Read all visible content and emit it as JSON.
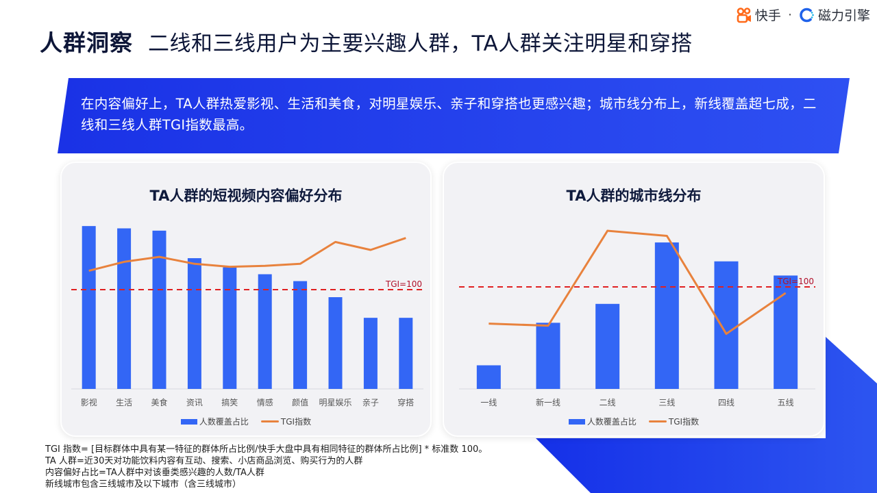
{
  "brand": {
    "kuaishou_label": "快手",
    "separator": "·",
    "engine_label": "磁力引擎",
    "kuaishou_icon": "kuaishou-logo-icon",
    "engine_icon": "cili-engine-logo-icon",
    "colors": {
      "kuaishou": "#ff6a1a",
      "engine": "#27b6e8"
    }
  },
  "header": {
    "title": "人群洞察",
    "subtitle": "二线和三线用户为主要兴趣人群，TA人群关注明星和穿搭"
  },
  "summary": {
    "text": "在内容偏好上，TA人群热爱影视、生活和美食，对明星娱乐、亲子和穿搭也更感兴趣；城市线分布上，新线覆盖超七成，二线和三线人群TGI指数最高。"
  },
  "colors": {
    "accent_blue": "#1f3ef0",
    "bar_blue": "#3366f5",
    "tgi_line": "#e8823d",
    "tgi_ref": "#e02020",
    "tgi_ref_label": "#b0102a"
  },
  "legend": {
    "bar_label": "人数覆盖占比",
    "line_label": "TGI指数"
  },
  "chart_data": [
    {
      "type": "bar+line",
      "title": "TA人群的短视频内容偏好分布",
      "categories": [
        "影视",
        "生活",
        "美食",
        "资讯",
        "搞笑",
        "情感",
        "颜值",
        "明星娱乐",
        "亲子",
        "穿搭"
      ],
      "series": [
        {
          "name": "人数覆盖占比",
          "type": "bar",
          "axis": "left",
          "values": [
            71,
            70,
            69,
            57,
            53,
            50,
            47,
            40,
            31,
            31
          ]
        },
        {
          "name": "TGI指数",
          "type": "line",
          "axis": "right",
          "values": [
            119,
            128,
            133,
            126,
            123,
            124,
            126,
            148,
            140,
            152
          ]
        }
      ],
      "reference_line": {
        "label": "TGI=100",
        "value": 100,
        "style": "dashed"
      },
      "xlabel": "",
      "ylabel": "",
      "axes_visible": false,
      "legend_position": "bottom"
    },
    {
      "type": "bar+line",
      "title": "TA人群的城市线分布",
      "categories": [
        "一线",
        "新一线",
        "二线",
        "三线",
        "四线",
        "五线"
      ],
      "series": [
        {
          "name": "人数覆盖占比",
          "type": "bar",
          "axis": "left",
          "values": [
            5,
            14,
            18,
            31,
            27,
            24
          ]
        },
        {
          "name": "TGI指数",
          "type": "line",
          "axis": "right",
          "values": [
            64,
            62,
            155,
            150,
            54,
            94
          ]
        }
      ],
      "reference_line": {
        "label": "TGI=100",
        "value": 100,
        "style": "dashed"
      },
      "xlabel": "",
      "ylabel": "",
      "axes_visible": false,
      "legend_position": "bottom"
    }
  ],
  "footnotes": [
    "TGI 指数= [目标群体中具有某一特征的群体所占比例/快手大盘中具有相同特征的群体所占比例] * 标准数 100。",
    "TA 人群=近30天对功能饮料内容有互动、搜索、小店商品浏览、购买行为的人群",
    "内容偏好占比=TA人群中对该垂类感兴趣的人数/TA人群",
    "新线城市包含三线城市及以下城市（含三线城市）"
  ]
}
